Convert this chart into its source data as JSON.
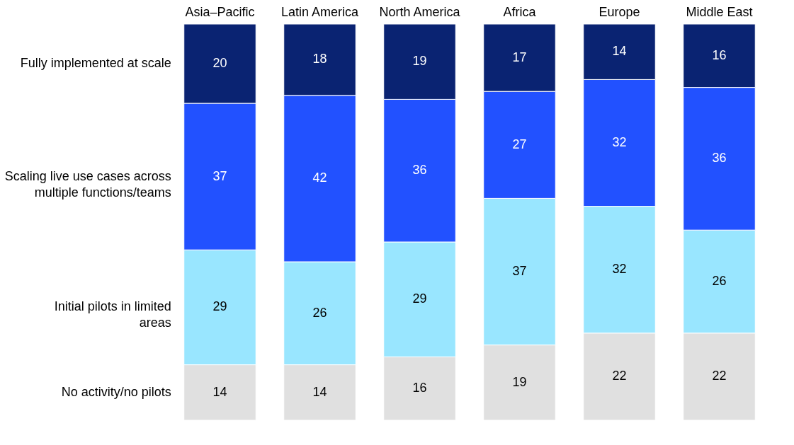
{
  "chart_data": {
    "type": "bar",
    "stacked": true,
    "data_labels": true,
    "legend": "left",
    "categories": [
      "Asia–Pacific",
      "Latin America",
      "North America",
      "Africa",
      "Europe",
      "Middle East"
    ],
    "series": [
      {
        "name": "No activity/no pilots",
        "color": "#e0e0e0",
        "values": [
          14,
          14,
          16,
          19,
          22,
          22
        ]
      },
      {
        "name": "Initial pilots in limited areas",
        "color": "#99e6ff",
        "values": [
          29,
          26,
          29,
          37,
          32,
          26
        ]
      },
      {
        "name": "Scaling live use cases across multiple functions/teams",
        "color": "#2251ff",
        "values": [
          37,
          42,
          36,
          27,
          32,
          36
        ]
      },
      {
        "name": "Fully implemented at scale",
        "color": "#0a2372",
        "values": [
          20,
          18,
          19,
          17,
          14,
          16
        ]
      }
    ]
  }
}
